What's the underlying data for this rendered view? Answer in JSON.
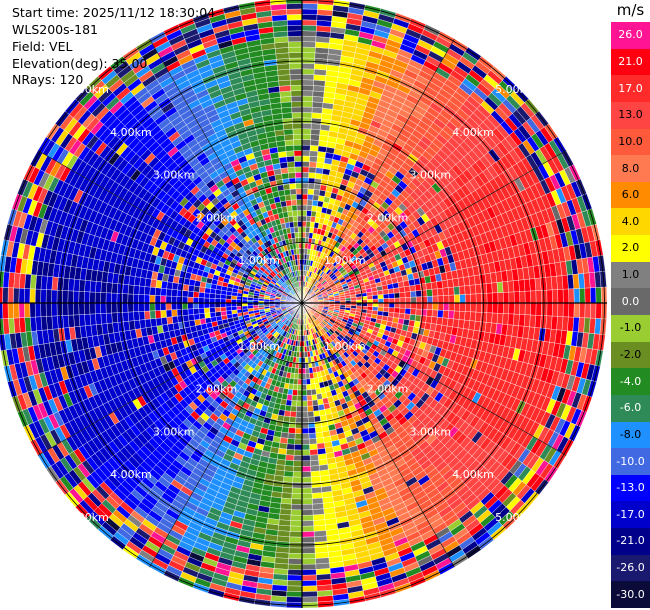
{
  "info": {
    "start_time": "Start time: 2025/11/12 18:30:04",
    "station": "WLS200s-181",
    "field": "Field: VEL",
    "elevation": "Elevation(deg): 35.00",
    "nrays": "NRays: 120"
  },
  "colorbar": {
    "unit": "m/s",
    "levels": [
      {
        "label": "26.0",
        "color": "#ff1493"
      },
      {
        "label": "21.0",
        "color": "#ff0010"
      },
      {
        "label": "17.0",
        "color": "#ff2a2a"
      },
      {
        "label": "13.0",
        "color": "#ff4444"
      },
      {
        "label": "10.0",
        "color": "#ff5a3c"
      },
      {
        "label": "8.0",
        "color": "#ff7a50"
      },
      {
        "label": "6.0",
        "color": "#ff8c00"
      },
      {
        "label": "4.0",
        "color": "#ffd700"
      },
      {
        "label": "2.0",
        "color": "#ffff00"
      },
      {
        "label": "1.0",
        "color": "#808080"
      },
      {
        "label": "0.0",
        "color": "#696969"
      },
      {
        "label": "-1.0",
        "color": "#9acd32"
      },
      {
        "label": "-2.0",
        "color": "#6b8e23"
      },
      {
        "label": "-4.0",
        "color": "#228b22"
      },
      {
        "label": "-6.0",
        "color": "#2e8b57"
      },
      {
        "label": "-8.0",
        "color": "#1e90ff"
      },
      {
        "label": "-10.0",
        "color": "#4169e1"
      },
      {
        "label": "-13.0",
        "color": "#0000ff"
      },
      {
        "label": "-17.0",
        "color": "#0000cd"
      },
      {
        "label": "-21.0",
        "color": "#00008b"
      },
      {
        "label": "-26.0",
        "color": "#191970"
      },
      {
        "label": "-30.0",
        "color": "#0b0b3a"
      }
    ]
  },
  "chart_data": {
    "type": "heatmap",
    "projection": "polar PPI (plan position indicator)",
    "field": "VEL",
    "unit": "m/s",
    "nrays": 120,
    "range_rings_km": [
      1.0,
      2.0,
      3.0,
      4.0,
      5.0
    ],
    "ring_labels": [
      "1.00km",
      "2.00km",
      "3.00km",
      "4.00km",
      "5.00km"
    ],
    "grid": true,
    "colorbar_placement": "right",
    "radial_wind_pattern": {
      "description": "approaching (negative) on west half, receding (positive) on east half, noisy beyond ~4.5 km and near center",
      "max_positive_mps": 21.0,
      "max_negative_mps": -17.0,
      "zero_crossing_azimuths_deg": [
        0,
        180
      ]
    }
  }
}
